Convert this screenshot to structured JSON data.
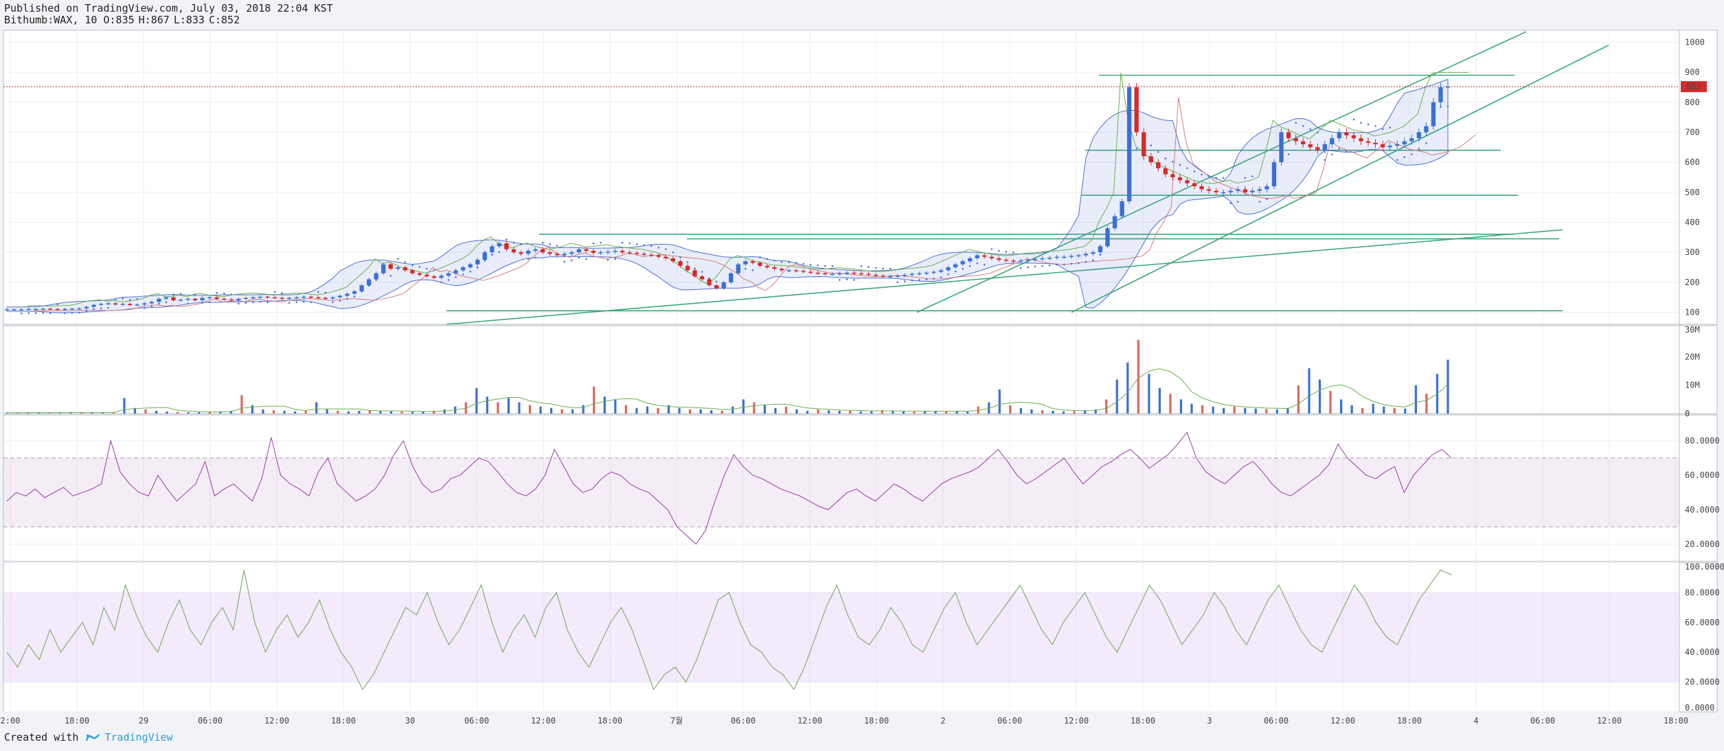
{
  "header": {
    "published": "Published on TradingView.com, July 03, 2018 22:04 KST",
    "symbol": "Bithumb:WAX, 10",
    "ohlc": [
      "O:835",
      "H:867",
      "L:833",
      "C:852"
    ]
  },
  "footer": {
    "created_with": "Created with",
    "brand": "TradingView"
  },
  "colors": {
    "up": "#3a6fd6",
    "down": "#d42b2b",
    "bb": "#4d6fd8",
    "trend": "#3aa97a",
    "ichimoku_green": "#68b04a",
    "ichimoku_red": "#d77b7b",
    "rsi": "#a04aa8",
    "stoch": "#7aa864",
    "last_price": "#d42b2b"
  },
  "chart_data": [
    {
      "type": "candlestick",
      "name": "price",
      "last_price": 852,
      "last_price_label": "852",
      "y_ticks": [
        "1000",
        "900",
        "800",
        "700",
        "600",
        "500",
        "400",
        "300",
        "200",
        "100"
      ],
      "ylim": [
        60,
        1040
      ],
      "series_close": [
        110,
        110,
        110,
        111,
        111,
        112,
        111,
        110,
        111,
        112,
        113,
        118,
        125,
        128,
        130,
        126,
        128,
        124,
        126,
        130,
        135,
        145,
        150,
        140,
        142,
        145,
        140,
        148,
        150,
        145,
        143,
        140,
        145,
        148,
        150,
        152,
        150,
        148,
        145,
        148,
        150,
        152,
        150,
        148,
        146,
        150,
        155,
        162,
        170,
        190,
        210,
        230,
        260,
        245,
        250,
        240,
        230,
        225,
        220,
        215,
        222,
        230,
        240,
        250,
        260,
        275,
        300,
        320,
        330,
        310,
        300,
        295,
        305,
        310,
        300,
        295,
        290,
        295,
        300,
        310,
        305,
        298,
        300,
        302,
        305,
        300,
        298,
        295,
        292,
        290,
        285,
        280,
        270,
        255,
        240,
        220,
        210,
        190,
        180,
        200,
        230,
        260,
        270,
        265,
        255,
        250,
        245,
        240,
        240,
        238,
        235,
        232,
        230,
        228,
        228,
        230,
        232,
        230,
        228,
        225,
        222,
        220,
        220,
        222,
        225,
        228,
        230,
        232,
        235,
        240,
        250,
        260,
        270,
        280,
        290,
        285,
        280,
        275,
        272,
        270,
        272,
        275,
        278,
        280,
        282,
        285,
        285,
        288,
        290,
        295,
        300,
        320,
        380,
        420,
        470,
        850,
        700,
        620,
        600,
        580,
        560,
        550,
        540,
        530,
        520,
        510,
        505,
        500,
        500,
        505,
        510,
        500,
        505,
        510,
        520,
        600,
        700,
        680,
        670,
        660,
        650,
        640,
        660,
        680,
        700,
        690,
        680,
        670,
        665,
        660,
        650,
        655,
        660,
        670,
        680,
        700,
        720,
        800,
        850,
        852
      ],
      "horizontal_levels": [
        890,
        640,
        490,
        360,
        345,
        105
      ],
      "x_ticks": [
        "2:00",
        "18:00",
        "29",
        "06:00",
        "12:00",
        "18:00",
        "30",
        "06:00",
        "12:00",
        "18:00",
        "7월",
        "06:00",
        "12:00",
        "18:00",
        "2",
        "06:00",
        "12:00",
        "18:00",
        "3",
        "06:00",
        "12:00",
        "18:00",
        "4",
        "06:00",
        "12:00",
        "18:00"
      ]
    },
    {
      "type": "bar",
      "name": "volume",
      "y_ticks": [
        "30M",
        "20M",
        "10M",
        "0"
      ],
      "ylim": [
        0,
        30
      ],
      "values": [
        0.3,
        0.3,
        0.4,
        0.3,
        0.3,
        0.4,
        0.5,
        0.4,
        0.3,
        0.4,
        0.5,
        5.5,
        2.0,
        1.5,
        1.0,
        0.8,
        0.6,
        0.5,
        0.5,
        0.6,
        0.8,
        1.0,
        6.5,
        3.0,
        1.5,
        1.2,
        1.0,
        0.8,
        1.0,
        4.0,
        1.5,
        1.0,
        0.8,
        1.0,
        1.2,
        1.0,
        0.8,
        0.7,
        0.6,
        0.7,
        1.0,
        1.5,
        2.5,
        4.0,
        9.0,
        6.0,
        4.0,
        5.5,
        4.0,
        3.0,
        2.5,
        2.0,
        1.5,
        1.5,
        3.0,
        9.5,
        6.0,
        5.0,
        3.0,
        2.0,
        2.5,
        2.0,
        3.0,
        2.0,
        1.5,
        1.5,
        1.2,
        1.0,
        2.5,
        5.0,
        4.0,
        3.0,
        2.0,
        2.5,
        1.5,
        1.0,
        1.5,
        1.2,
        1.0,
        1.0,
        0.8,
        0.8,
        1.2,
        1.0,
        0.8,
        0.7,
        0.8,
        1.0,
        0.9,
        0.8,
        0.7,
        2.5,
        4.0,
        8.5,
        3.0,
        2.0,
        1.5,
        1.2,
        1.0,
        0.8,
        0.9,
        1.2,
        1.5,
        5.0,
        12.0,
        18.0,
        26.0,
        14.0,
        9.0,
        7.0,
        5.0,
        3.5,
        3.0,
        2.5,
        2.0,
        2.5,
        2.0,
        1.8,
        1.6,
        1.5,
        2.0,
        10.0,
        16.0,
        12.0,
        8.0,
        5.0,
        3.0,
        2.0,
        3.5,
        2.5,
        2.0,
        1.8,
        10.0,
        7.0,
        14.0,
        19.0
      ]
    },
    {
      "type": "line",
      "name": "rsi",
      "y_ticks": [
        "80.0000",
        "60.0000",
        "40.0000",
        "20.0000"
      ],
      "ylim": [
        10,
        95
      ],
      "bands": [
        70,
        30
      ],
      "values": [
        45,
        50,
        48,
        52,
        47,
        50,
        53,
        48,
        50,
        52,
        55,
        80,
        62,
        55,
        50,
        48,
        60,
        52,
        45,
        50,
        55,
        68,
        48,
        52,
        55,
        50,
        45,
        58,
        82,
        60,
        55,
        52,
        48,
        62,
        70,
        55,
        50,
        45,
        48,
        52,
        60,
        72,
        80,
        65,
        55,
        50,
        52,
        58,
        60,
        65,
        70,
        68,
        62,
        55,
        50,
        48,
        52,
        60,
        75,
        65,
        55,
        50,
        52,
        58,
        62,
        60,
        55,
        52,
        50,
        45,
        40,
        30,
        25,
        20,
        28,
        45,
        60,
        72,
        65,
        60,
        58,
        55,
        52,
        50,
        48,
        45,
        42,
        40,
        45,
        50,
        52,
        48,
        45,
        50,
        55,
        52,
        48,
        45,
        50,
        55,
        58,
        60,
        62,
        65,
        70,
        75,
        68,
        60,
        55,
        58,
        62,
        66,
        70,
        62,
        55,
        60,
        65,
        68,
        72,
        75,
        70,
        64,
        68,
        72,
        78,
        85,
        70,
        62,
        58,
        55,
        60,
        65,
        68,
        62,
        55,
        50,
        48,
        52,
        56,
        60,
        66,
        78,
        70,
        65,
        60,
        58,
        62,
        65,
        50,
        60,
        66,
        72,
        75,
        70
      ]
    },
    {
      "type": "line",
      "name": "stochastic",
      "y_ticks": [
        "100.0000",
        "80.0000",
        "60.0000",
        "40.0000",
        "20.0000",
        "0.0000"
      ],
      "ylim": [
        0,
        100
      ],
      "bands": [
        80,
        20
      ],
      "values": [
        40,
        30,
        45,
        35,
        55,
        40,
        50,
        60,
        45,
        70,
        55,
        85,
        65,
        50,
        40,
        60,
        75,
        55,
        45,
        60,
        70,
        55,
        95,
        60,
        40,
        55,
        65,
        50,
        60,
        75,
        55,
        40,
        30,
        15,
        25,
        40,
        55,
        70,
        65,
        80,
        60,
        45,
        55,
        70,
        85,
        60,
        40,
        55,
        65,
        50,
        70,
        80,
        55,
        40,
        30,
        45,
        60,
        70,
        55,
        35,
        15,
        25,
        30,
        20,
        35,
        55,
        75,
        80,
        60,
        45,
        40,
        30,
        25,
        15,
        30,
        50,
        70,
        85,
        65,
        50,
        45,
        55,
        70,
        60,
        45,
        40,
        55,
        70,
        80,
        60,
        45,
        55,
        65,
        75,
        85,
        70,
        55,
        45,
        60,
        70,
        80,
        65,
        50,
        40,
        55,
        70,
        85,
        75,
        60,
        45,
        55,
        65,
        80,
        70,
        55,
        45,
        60,
        75,
        85,
        70,
        55,
        45,
        40,
        55,
        70,
        85,
        75,
        60,
        50,
        45,
        60,
        75,
        85,
        95,
        92
      ]
    }
  ]
}
